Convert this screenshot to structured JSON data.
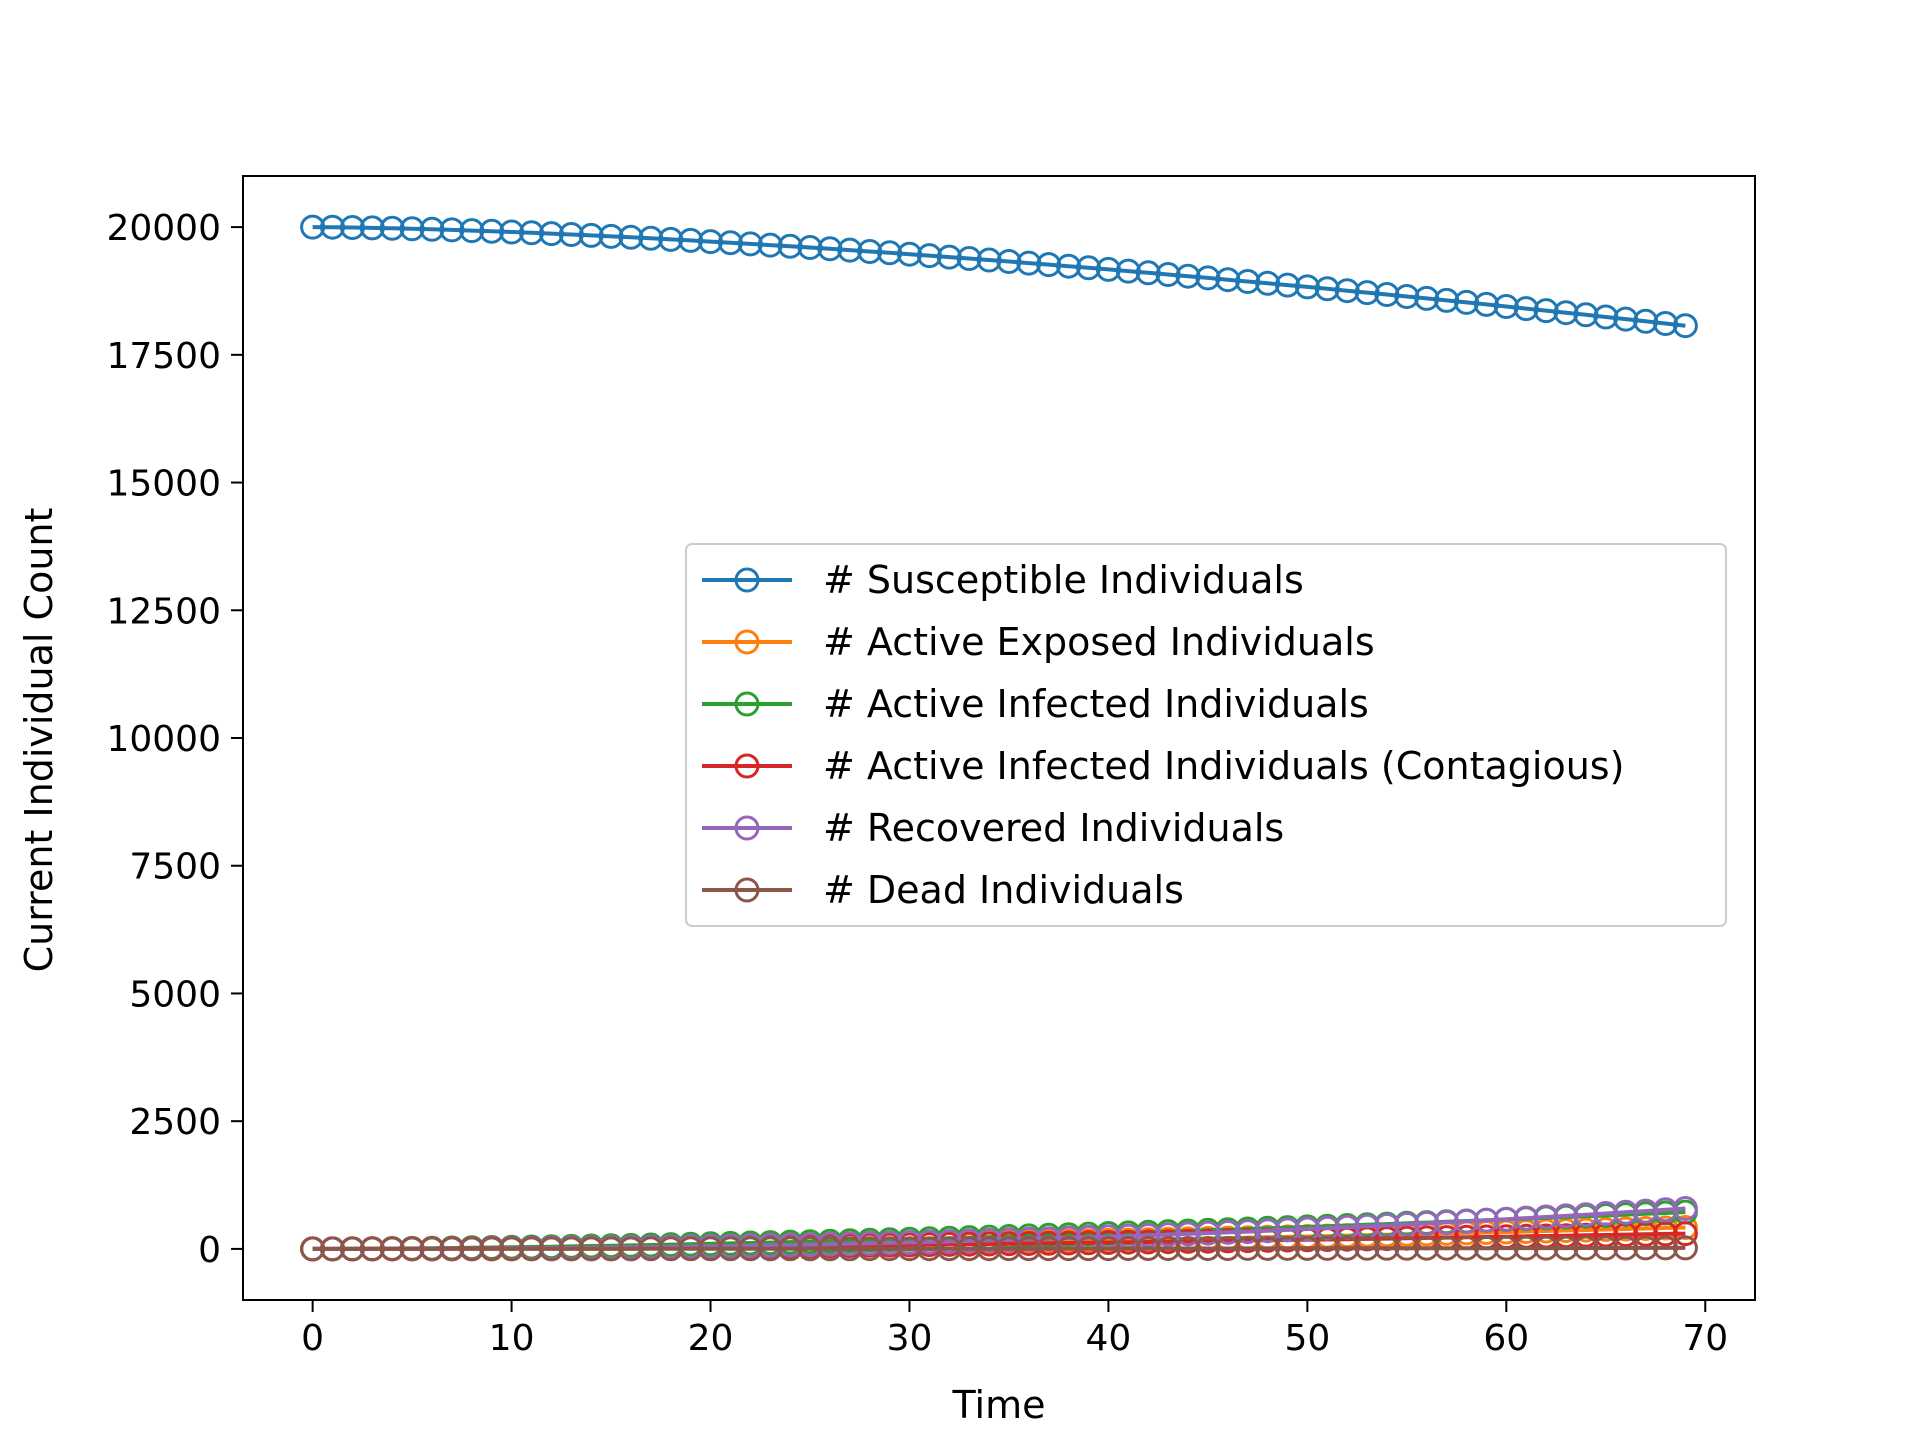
{
  "chart_data": {
    "type": "line",
    "title": "",
    "xlabel": "Time",
    "ylabel": "Current Individual Count",
    "xlim": [
      -3.5,
      72.5
    ],
    "ylim": [
      -1000,
      21000
    ],
    "xticks": [
      0,
      10,
      20,
      30,
      40,
      50,
      60,
      70
    ],
    "yticks": [
      0,
      2500,
      5000,
      7500,
      10000,
      12500,
      15000,
      17500,
      20000
    ],
    "grid": false,
    "legend_position": "center-right",
    "marker": "open-circle",
    "x": {
      "start": 0,
      "end": 69,
      "step": 1
    },
    "series": [
      {
        "name": "# Susceptible Individuals",
        "color": "#1f77b4",
        "curve": {
          "start": 20000,
          "end": 18070,
          "power": 1.55
        }
      },
      {
        "name": "# Active Exposed Individuals",
        "color": "#ff7f0e",
        "curve": {
          "start": 0,
          "end": 420,
          "power": 1.7
        }
      },
      {
        "name": "# Active Infected Individuals",
        "color": "#2ca02c",
        "curve": {
          "start": 0,
          "end": 720,
          "power": 1.6
        }
      },
      {
        "name": "# Active Infected Individuals (Contagious)",
        "color": "#d62728",
        "curve": {
          "start": 0,
          "end": 300,
          "power": 1.6
        }
      },
      {
        "name": "# Recovered Individuals",
        "color": "#9467bd",
        "curve": {
          "start": 0,
          "end": 790,
          "power": 2.2
        }
      },
      {
        "name": "# Dead Individuals",
        "color": "#8c564b",
        "curve": {
          "start": 0,
          "end": 20,
          "power": 2.0
        }
      }
    ]
  }
}
